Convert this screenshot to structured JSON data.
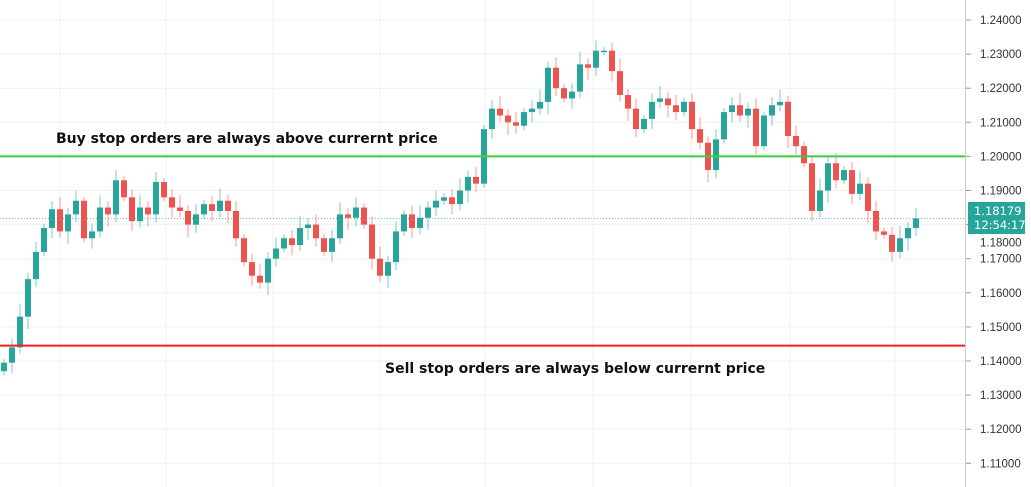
{
  "chart_data": {
    "type": "candlestick",
    "title": "",
    "xlabel": "",
    "ylabel": "",
    "ylim": [
      1.105,
      1.245
    ],
    "y_ticks": [
      "1.24000",
      "1.23000",
      "1.22000",
      "1.21000",
      "1.20000",
      "1.19000",
      "1.18000",
      "1.17000",
      "1.16000",
      "1.15000",
      "1.14000",
      "1.13000",
      "1.12000",
      "1.11000"
    ],
    "grid": true,
    "first_open": 1.137,
    "closes": [
      1.1395,
      1.144,
      1.153,
      1.164,
      1.172,
      1.179,
      1.1845,
      1.178,
      1.183,
      1.187,
      1.176,
      1.178,
      1.185,
      1.183,
      1.193,
      1.188,
      1.181,
      1.185,
      1.183,
      1.1925,
      1.188,
      1.185,
      1.184,
      1.18,
      1.183,
      1.186,
      1.184,
      1.187,
      1.184,
      1.176,
      1.169,
      1.165,
      1.163,
      1.17,
      1.173,
      1.176,
      1.174,
      1.179,
      1.18,
      1.176,
      1.172,
      1.176,
      1.183,
      1.182,
      1.185,
      1.18,
      1.17,
      1.165,
      1.169,
      1.178,
      1.183,
      1.179,
      1.182,
      1.185,
      1.187,
      1.188,
      1.186,
      1.19,
      1.194,
      1.192,
      1.208,
      1.214,
      1.212,
      1.21,
      1.209,
      1.213,
      1.214,
      1.216,
      1.226,
      1.22,
      1.217,
      1.219,
      1.227,
      1.226,
      1.231,
      1.231,
      1.225,
      1.218,
      1.214,
      1.208,
      1.211,
      1.216,
      1.217,
      1.215,
      1.213,
      1.216,
      1.208,
      1.204,
      1.196,
      1.205,
      1.213,
      1.215,
      1.212,
      1.214,
      1.203,
      1.212,
      1.215,
      1.216,
      1.206,
      1.203,
      1.198,
      1.184,
      1.19,
      1.198,
      1.193,
      1.196,
      1.189,
      1.192,
      1.184,
      1.178,
      1.177,
      1.172,
      1.176,
      1.179,
      1.18179
    ],
    "current_price": "1.18179",
    "countdown": "12:54:17",
    "lines": [
      {
        "price": 1.2,
        "color": "#3ccf3c",
        "label": "Buy stop orders are always above currernt price"
      },
      {
        "price": 1.1445,
        "color": "#f21f1f",
        "label": "Sell stop orders are always below currernt price"
      }
    ],
    "colors": {
      "up": "#26a69a",
      "down": "#ef5350",
      "price_label": "#26a69a"
    }
  }
}
